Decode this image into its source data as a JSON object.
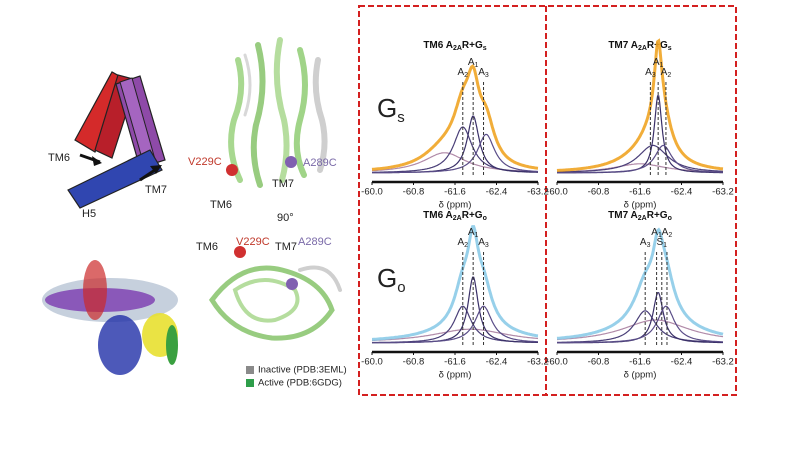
{
  "illustration": {
    "helix_labels": [
      "TM6",
      "TM7",
      "H5"
    ],
    "structure_labels": [
      "V229C",
      "A289C",
      "TM7",
      "TM6",
      "90°",
      "TM6",
      "V229C",
      "TM7",
      "A289C"
    ],
    "legend": [
      {
        "name": "Inactive (PDB:3EML)",
        "color": "#8a8a8a"
      },
      {
        "name": "Active (PDB:6GDG)",
        "color": "#2e9e4a"
      }
    ]
  },
  "chart_data": {
    "type": "spectrum",
    "rows": [
      [
        "G",
        "s"
      ],
      [
        "G",
        "o"
      ]
    ],
    "xlim": [
      -60,
      -63.2
    ],
    "ylim": [
      0,
      1
    ],
    "xticks": [
      {
        "value": -60,
        "label": "-60.0"
      },
      -60.8,
      -61.6,
      -62.4,
      -63.2
    ],
    "xlabel": "δ (ppm)",
    "panels": [
      {
        "title": [
          "TM6 A",
          "2A",
          "R+G",
          "s"
        ],
        "color": "#f0a424",
        "peak_labels": [
          {
            "name": [
              "A",
              "2"
            ],
            "ppm": -61.75
          },
          {
            "name": [
              "A",
              "1"
            ],
            "ppm": -61.95
          },
          {
            "name": [
              "A",
              "3"
            ],
            "ppm": -62.15
          }
        ],
        "components": [
          {
            "center": -61.4,
            "height": 0.22,
            "width": 0.5
          },
          {
            "center": -61.75,
            "height": 0.5,
            "width": 0.22
          },
          {
            "center": -61.95,
            "height": 0.62,
            "width": 0.14
          },
          {
            "center": -62.2,
            "height": 0.42,
            "width": 0.2
          }
        ]
      },
      {
        "title": [
          "TM7 A",
          "2A",
          "R+G",
          "s"
        ],
        "color": "#f0a424",
        "peak_labels": [
          {
            "name": [
              "A",
              "3"
            ],
            "ppm": -61.8
          },
          {
            "name": [
              "A",
              "1"
            ],
            "ppm": -61.95
          },
          {
            "name": [
              "A",
              "2"
            ],
            "ppm": -62.1
          }
        ],
        "components": [
          {
            "center": -61.6,
            "height": 0.1,
            "width": 0.6
          },
          {
            "center": -61.85,
            "height": 0.3,
            "width": 0.35
          },
          {
            "center": -61.95,
            "height": 0.85,
            "width": 0.09
          },
          {
            "center": -62.05,
            "height": 0.3,
            "width": 0.2
          }
        ]
      },
      {
        "title": [
          "TM6 A",
          "2A",
          "R+G",
          "o"
        ],
        "color": "#8ccbe8",
        "peak_labels": [
          {
            "name": [
              "A",
              "2"
            ],
            "ppm": -61.75
          },
          {
            "name": [
              "A",
              "1"
            ],
            "ppm": -61.95
          },
          {
            "name": [
              "A",
              "3"
            ],
            "ppm": -62.15
          }
        ],
        "components": [
          {
            "center": -61.9,
            "height": 0.15,
            "width": 0.9
          },
          {
            "center": -61.75,
            "height": 0.4,
            "width": 0.2
          },
          {
            "center": -61.95,
            "height": 0.72,
            "width": 0.12
          },
          {
            "center": -62.15,
            "height": 0.4,
            "width": 0.2
          }
        ]
      },
      {
        "title": [
          "TM7 A",
          "2A",
          "R+G",
          "o"
        ],
        "color": "#8ccbe8",
        "peak_labels": [
          {
            "name": [
              "A",
              "3"
            ],
            "ppm": -61.7
          },
          {
            "name": [
              "A",
              "1"
            ],
            "ppm": -61.92
          },
          {
            "name": [
              "S",
              "1"
            ],
            "ppm": -62.02
          },
          {
            "name": [
              "A",
              "2"
            ],
            "ppm": -62.12
          }
        ],
        "components": [
          {
            "center": -61.9,
            "height": 0.25,
            "width": 0.8
          },
          {
            "center": -61.7,
            "height": 0.35,
            "width": 0.25
          },
          {
            "center": -61.95,
            "height": 0.55,
            "width": 0.12
          },
          {
            "center": -62.1,
            "height": 0.4,
            "width": 0.2
          }
        ]
      }
    ]
  }
}
